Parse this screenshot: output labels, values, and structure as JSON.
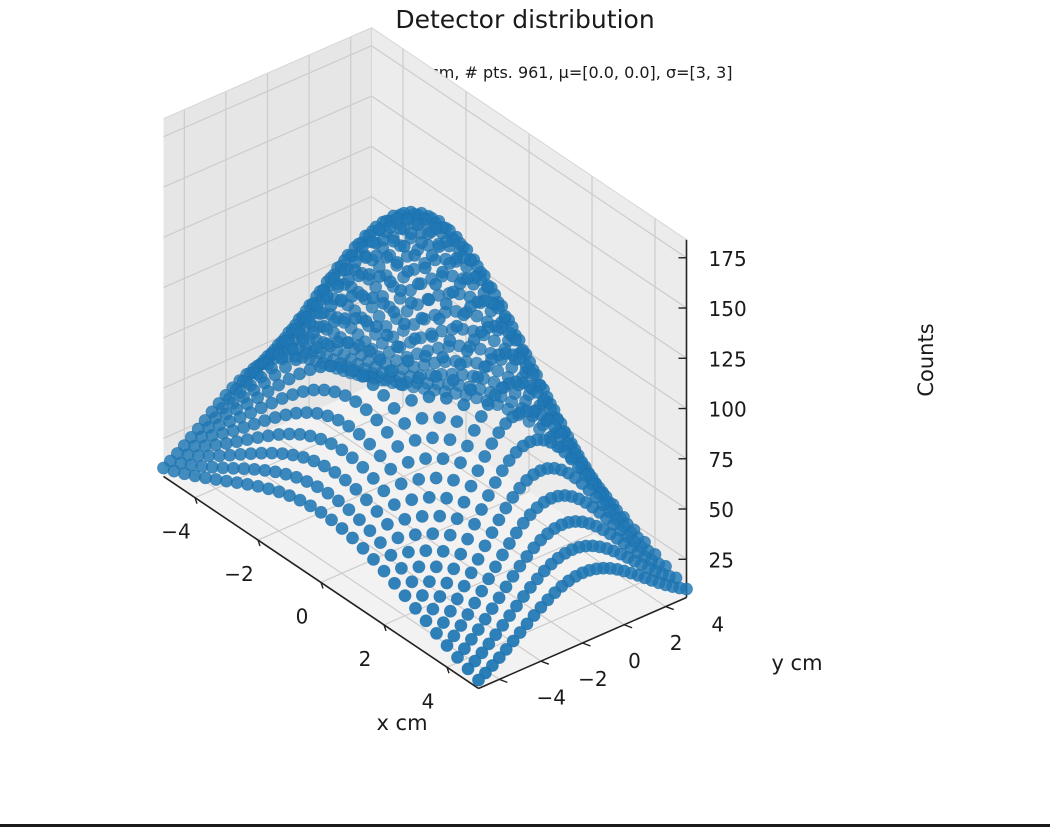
{
  "chart_data": {
    "type": "scatter",
    "projection": "3d",
    "title": "Detector distribution",
    "subtitle": "10cm×10cm,  # pts. 961, μ=[0.0, 0.0], σ=[3, 3]",
    "xlabel": "x cm",
    "ylabel": "y cm",
    "zlabel": "Counts",
    "x_range": [
      -5,
      5
    ],
    "y_range": [
      -5,
      5
    ],
    "z_range": [
      6,
      184
    ],
    "x_ticks": [
      "−4",
      "−2",
      "0",
      "2",
      "4"
    ],
    "y_ticks": [
      "−4",
      "−2",
      "0",
      "2",
      "4"
    ],
    "z_ticks": [
      "25",
      "50",
      "75",
      "100",
      "125",
      "150",
      "175"
    ],
    "grid": "on",
    "marker_color": "#1f77b4",
    "pane_color": "#f2f2f2",
    "grid_color": "#cccccc",
    "surface": {
      "kind": "gaussian-2d",
      "points_per_axis": 31,
      "mu": [
        0.0,
        0.0
      ],
      "sigma": [
        3,
        3
      ],
      "peak_counts": 164
    }
  }
}
